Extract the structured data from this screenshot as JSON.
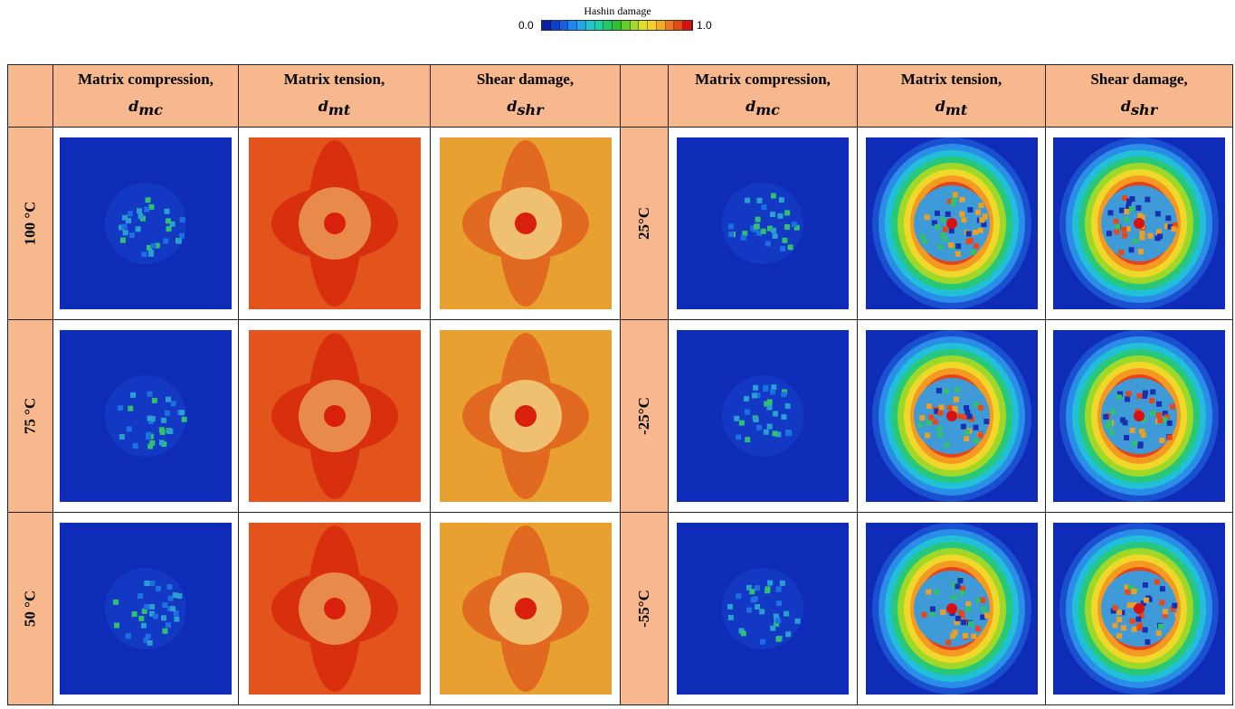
{
  "legend": {
    "title": "Hashin damage",
    "min_label": "0.0",
    "max_label": "1.0"
  },
  "table": {
    "headers": [
      {
        "label": "Matrix compression,",
        "symbol": "d",
        "subscript": "mc"
      },
      {
        "label": "Matrix tension,",
        "symbol": "d",
        "subscript": "mt"
      },
      {
        "label": "Shear damage,",
        "symbol": "d",
        "subscript": "shr"
      },
      {
        "label": "Matrix compression,",
        "symbol": "d",
        "subscript": "mc"
      },
      {
        "label": "Matrix tension,",
        "symbol": "d",
        "subscript": "mt"
      },
      {
        "label": "Shear damage,",
        "symbol": "d",
        "subscript": "shr"
      }
    ],
    "rows": [
      {
        "left_label": "100 °C",
        "right_label": "25°C"
      },
      {
        "left_label": "75 °C",
        "right_label": "-25°C"
      },
      {
        "left_label": "50 °C",
        "right_label": "-55°C"
      }
    ]
  }
}
